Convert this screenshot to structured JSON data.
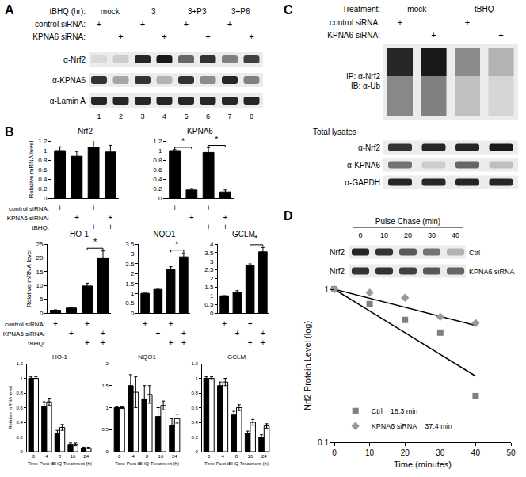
{
  "panels": {
    "A": {
      "label": "A",
      "header_label": "tBHQ (hr):",
      "groups": [
        "mock",
        "3",
        "3+P3",
        "3+P6"
      ],
      "rows": [
        {
          "label": "control siRNA:",
          "marks": [
            "+",
            "",
            "+",
            "",
            "+",
            "",
            "+",
            ""
          ]
        },
        {
          "label": "KPNA6 siRNA:",
          "marks": [
            "",
            "+",
            "",
            "+",
            "",
            "+",
            "",
            "+"
          ]
        }
      ],
      "blots": [
        {
          "label": "α-Nrf2",
          "bands": [
            0.15,
            0.2,
            0.85,
            0.9,
            0.6,
            0.8,
            0.5,
            0.75
          ]
        },
        {
          "label": "α-KPNA6",
          "bands": [
            0.8,
            0.35,
            0.8,
            0.3,
            0.8,
            0.45,
            0.85,
            0.5
          ]
        },
        {
          "label": "α-Lamin A",
          "bands": [
            0.85,
            0.85,
            0.85,
            0.85,
            0.85,
            0.85,
            0.85,
            0.85
          ]
        }
      ],
      "lane_numbers": [
        1,
        2,
        3,
        4,
        5,
        6,
        7,
        8
      ]
    },
    "B": {
      "label": "B",
      "rows": [
        {
          "label": "control siRNA:",
          "marks": [
            "+",
            "",
            "+",
            ""
          ]
        },
        {
          "label": "KPNA6 siRNA:",
          "marks": [
            "",
            "+",
            "",
            "+"
          ]
        },
        {
          "label": "tBHQ:",
          "marks": [
            "",
            "",
            "+",
            "+"
          ]
        }
      ]
    },
    "C": {
      "label": "C",
      "header_label": "Treatment:",
      "groups": [
        "mock",
        "tBHQ"
      ],
      "rows": [
        {
          "label": "control siRNA:",
          "marks": [
            "+",
            "",
            "+",
            ""
          ]
        },
        {
          "label": "KPNA6 siRNA:",
          "marks": [
            "",
            "+",
            "",
            "+"
          ]
        }
      ],
      "ip_blot": {
        "labels": [
          "IP: α-Nrf2",
          "IB: α-Ub"
        ],
        "bands": [
          0.85,
          0.9,
          0.45,
          0.3
        ]
      },
      "lysate_label": "Total lysates",
      "blots": [
        {
          "label": "α-Nrf2",
          "bands": [
            0.8,
            0.85,
            0.85,
            0.9
          ]
        },
        {
          "label": "α-KPNA6",
          "bands": [
            0.55,
            0.2,
            0.6,
            0.25
          ]
        },
        {
          "label": "α-GAPDH",
          "bands": [
            0.85,
            0.85,
            0.85,
            0.85
          ]
        }
      ]
    },
    "D": {
      "label": "D",
      "header_label": "Pulse Chase (min)",
      "times": [
        0,
        10,
        20,
        30,
        40
      ],
      "blots": [
        {
          "label": "Nrf2",
          "condition": "Ctrl",
          "bands": [
            0.85,
            0.8,
            0.65,
            0.55,
            0.3
          ]
        },
        {
          "label": "Nrf2",
          "condition": "KPNA6 siRNA",
          "bands": [
            0.8,
            0.8,
            0.75,
            0.65,
            0.6
          ]
        }
      ]
    }
  },
  "chart_data": [
    {
      "panel": "B",
      "type": "bar",
      "title": "Nrf2",
      "y_label": "Relative mRNA level",
      "categories": [
        null,
        null,
        null,
        null
      ],
      "values": [
        1.0,
        0.88,
        1.07,
        0.97
      ],
      "errors": [
        0.08,
        0.1,
        0.15,
        0.14
      ],
      "color": "#000000",
      "ylim": [
        0,
        1.2
      ],
      "yticks": [
        0,
        0.2,
        0.4,
        0.6,
        0.8,
        1,
        1.2
      ],
      "tick_labels": "y"
    },
    {
      "panel": "B",
      "type": "bar",
      "title": "KPNA6",
      "categories": [
        null,
        null,
        null,
        null
      ],
      "values": [
        1.0,
        0.17,
        0.96,
        0.13
      ],
      "errors": [
        0.02,
        0.03,
        0.1,
        0.04
      ],
      "color": "#000000",
      "ylim": [
        0,
        1.2
      ],
      "yticks": [
        0,
        0.2,
        0.4,
        0.6,
        0.8,
        1,
        1.2
      ],
      "tick_labels": "y",
      "significance": [
        {
          "from": 0,
          "to": 1,
          "label": "*"
        },
        {
          "from": 2,
          "to": 3,
          "label": "*"
        }
      ]
    },
    {
      "panel": "B",
      "type": "bar",
      "title": "HO-1",
      "y_label": "Relative mRNA level",
      "categories": [
        null,
        null,
        null,
        null
      ],
      "values": [
        1.0,
        1.8,
        9.8,
        20
      ],
      "errors": [
        0.15,
        0.2,
        1.0,
        2.5
      ],
      "color": "#000000",
      "ylim": [
        0,
        25
      ],
      "yticks": [
        0,
        5,
        10,
        15,
        20,
        25
      ],
      "tick_labels": "y",
      "significance": [
        {
          "from": 2,
          "to": 3,
          "label": "*"
        }
      ]
    },
    {
      "panel": "B",
      "type": "bar",
      "title": "NQO1",
      "categories": [
        null,
        null,
        null,
        null
      ],
      "values": [
        1.0,
        1.2,
        2.2,
        2.85
      ],
      "errors": [
        0,
        0.05,
        0.15,
        0.2
      ],
      "color": "#000000",
      "ylim": [
        0,
        3.5
      ],
      "yticks": [
        0,
        0.5,
        1,
        1.5,
        2,
        2.5,
        3,
        3.5
      ],
      "tick_labels": "y",
      "significance": [
        {
          "from": 2,
          "to": 3,
          "label": "*"
        }
      ]
    },
    {
      "panel": "B",
      "type": "bar",
      "title": "GCLM",
      "categories": [
        null,
        null,
        null,
        null
      ],
      "values": [
        1.0,
        1.2,
        2.75,
        3.55
      ],
      "errors": [
        0,
        0.1,
        0.1,
        0.25
      ],
      "color": "#000000",
      "ylim": [
        0,
        4
      ],
      "yticks": [
        0,
        0.5,
        1,
        1.5,
        2,
        2.5,
        3,
        3.5,
        4
      ],
      "tick_labels": "y",
      "significance": [
        {
          "from": 2,
          "to": 3,
          "label": "*"
        }
      ]
    },
    {
      "panel": "B",
      "type": "bar",
      "title": "HO-1",
      "x_label": "Time Post tBHQ Treatment (h)",
      "y_label": "Relative mRNA level",
      "categories": [
        "0",
        "4",
        "8",
        "16",
        "24"
      ],
      "series": [
        {
          "color": "#000000",
          "values": [
            1.0,
            0.62,
            0.25,
            0.1,
            0.05
          ],
          "errors": [
            0.02,
            0.06,
            0.04,
            0.02,
            0.01
          ]
        },
        {
          "color": "#ffffff",
          "values": [
            1.0,
            0.68,
            0.33,
            0.1,
            0.05
          ],
          "errors": [
            0.02,
            0.05,
            0.04,
            0.02,
            0.01
          ]
        }
      ],
      "ylim": [
        0,
        1.2
      ],
      "yticks": [
        0,
        0.2,
        0.4,
        0.6,
        0.8,
        1,
        1.2
      ]
    },
    {
      "panel": "B",
      "type": "bar",
      "title": "NQO1",
      "x_label": "Time Post tBHQ Treatment (h)",
      "categories": [
        "0",
        "4",
        "8",
        "16",
        "24"
      ],
      "series": [
        {
          "color": "#000000",
          "values": [
            1.0,
            1.5,
            1.2,
            0.8,
            0.6
          ],
          "errors": [
            0.02,
            0.25,
            0.3,
            0.2,
            0.15
          ]
        },
        {
          "color": "#ffffff",
          "values": [
            1.0,
            1.35,
            1.3,
            1.05,
            0.75
          ],
          "errors": [
            0.02,
            0.35,
            0.2,
            0.1,
            0.1
          ]
        }
      ],
      "ylim": [
        0,
        2
      ],
      "yticks": [
        0,
        0.5,
        1,
        1.5,
        2
      ]
    },
    {
      "panel": "B",
      "type": "bar",
      "title": "GCLM",
      "x_label": "Time Post tBHQ Treatment (h)",
      "categories": [
        "0",
        "4",
        "8",
        "16",
        "24"
      ],
      "series": [
        {
          "color": "#000000",
          "values": [
            1.0,
            0.9,
            0.5,
            0.25,
            0.2
          ],
          "errors": [
            0.02,
            0.05,
            0.05,
            0.03,
            0.03
          ]
        },
        {
          "color": "#ffffff",
          "values": [
            1.0,
            0.95,
            0.6,
            0.4,
            0.35
          ],
          "errors": [
            0.02,
            0.05,
            0.04,
            0.04,
            0.03
          ]
        }
      ],
      "ylim": [
        0,
        1.2
      ],
      "yticks": [
        0,
        0.2,
        0.4,
        0.6,
        0.8,
        1,
        1.2
      ]
    },
    {
      "panel": "D",
      "type": "scatter",
      "x_label": "Time (minutes)",
      "y_label": "Nrf2 Protein Level (log)",
      "log": "y",
      "xlim": [
        0,
        50
      ],
      "xticks": [
        0,
        10,
        20,
        30,
        40,
        50
      ],
      "ylim": [
        0.1,
        1
      ],
      "yticks": [
        0.1,
        1
      ],
      "legend": "bottom left",
      "series": [
        {
          "name": "Ctrl",
          "fit_label": "18.3 min",
          "color": "#808080",
          "marker": "square",
          "x": [
            0,
            10,
            20,
            30,
            40
          ],
          "values": [
            1.0,
            0.8,
            0.63,
            0.52,
            0.2
          ],
          "fit_x": [
            0,
            40
          ],
          "fit_values": [
            1.0,
            0.27
          ]
        },
        {
          "name": "KPNA6 siRNA",
          "fit_label": "37.4 min",
          "color": "#999999",
          "marker": "diamond",
          "x": [
            0,
            10,
            20,
            30,
            40
          ],
          "values": [
            1.0,
            0.95,
            0.88,
            0.66,
            0.6
          ],
          "fit_x": [
            0,
            40
          ],
          "fit_values": [
            1.0,
            0.58
          ]
        }
      ]
    }
  ]
}
